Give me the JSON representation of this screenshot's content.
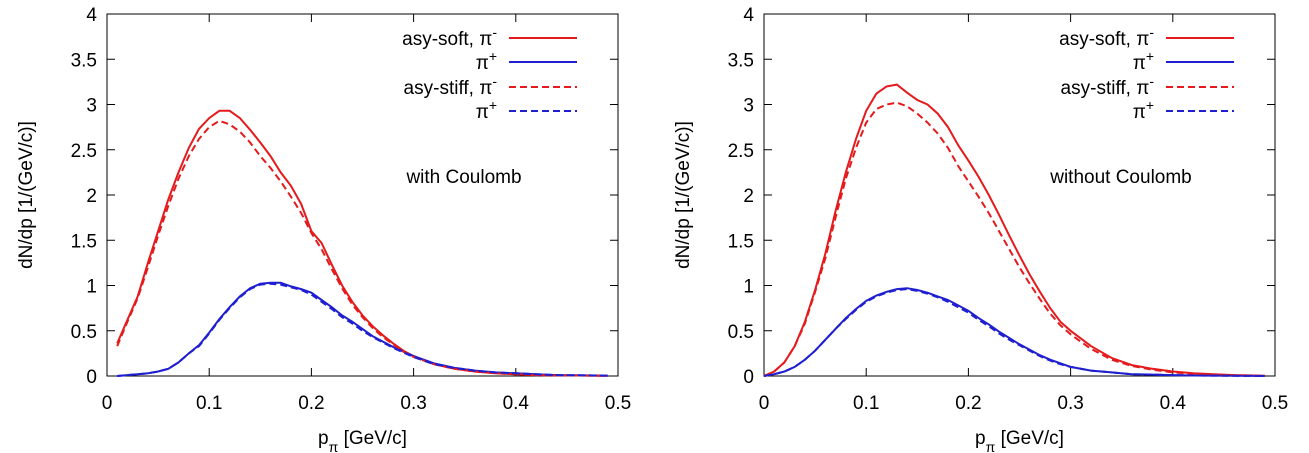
{
  "chart_data": [
    {
      "type": "line",
      "xlabel": "p",
      "xlabel_sub": "π",
      "xlabel_unit": " [GeV/c]",
      "ylabel": "dN/dp [1/(GeV/c)]",
      "xlim": [
        0,
        0.5
      ],
      "ylim": [
        0,
        4
      ],
      "xticks": [
        "0",
        "0.1",
        "0.2",
        "0.3",
        "0.4",
        "0.5"
      ],
      "yticks": [
        "0",
        "0.5",
        "1",
        "1.5",
        "2",
        "2.5",
        "3",
        "3.5",
        "4"
      ],
      "annotation": "with Coulomb",
      "grid": false,
      "legend_position": "top-right",
      "legend": [
        {
          "label": "asy-soft, π",
          "sup": "-",
          "color": "#e41a1c",
          "dash": "solid"
        },
        {
          "label": "π",
          "sup": "+",
          "color": "#1f1fd0",
          "dash": "solid"
        },
        {
          "label": "asy-stiff, π",
          "sup": "-",
          "color": "#e41a1c",
          "dash": "dashed"
        },
        {
          "label": "π",
          "sup": "+",
          "color": "#1f1fd0",
          "dash": "dashed"
        }
      ],
      "series": [
        {
          "color": "#e41a1c",
          "dash": "solid",
          "x": [
            0.01,
            0.02,
            0.03,
            0.04,
            0.05,
            0.06,
            0.07,
            0.08,
            0.09,
            0.1,
            0.11,
            0.12,
            0.13,
            0.14,
            0.15,
            0.16,
            0.17,
            0.18,
            0.19,
            0.2,
            0.21,
            0.22,
            0.23,
            0.24,
            0.25,
            0.26,
            0.27,
            0.28,
            0.29,
            0.3,
            0.32,
            0.34,
            0.36,
            0.38,
            0.4,
            0.42,
            0.44,
            0.46,
            0.48,
            0.49
          ],
          "y": [
            0.36,
            0.62,
            0.88,
            1.25,
            1.6,
            1.95,
            2.25,
            2.52,
            2.73,
            2.85,
            2.93,
            2.93,
            2.85,
            2.72,
            2.58,
            2.43,
            2.25,
            2.1,
            1.9,
            1.6,
            1.47,
            1.23,
            1.0,
            0.82,
            0.67,
            0.55,
            0.45,
            0.36,
            0.28,
            0.22,
            0.13,
            0.08,
            0.05,
            0.03,
            0.02,
            0.01,
            0.008,
            0.005,
            0.003,
            0.002
          ]
        },
        {
          "color": "#1f1fd0",
          "dash": "solid",
          "x": [
            0.01,
            0.02,
            0.03,
            0.04,
            0.05,
            0.06,
            0.07,
            0.08,
            0.09,
            0.1,
            0.11,
            0.12,
            0.13,
            0.14,
            0.15,
            0.16,
            0.17,
            0.18,
            0.19,
            0.2,
            0.21,
            0.22,
            0.23,
            0.24,
            0.25,
            0.26,
            0.27,
            0.28,
            0.29,
            0.3,
            0.32,
            0.34,
            0.36,
            0.38,
            0.4,
            0.42,
            0.44,
            0.46,
            0.48,
            0.49
          ],
          "y": [
            0.0,
            0.01,
            0.02,
            0.03,
            0.05,
            0.08,
            0.15,
            0.25,
            0.34,
            0.48,
            0.63,
            0.76,
            0.88,
            0.97,
            1.02,
            1.03,
            1.03,
            0.99,
            0.96,
            0.92,
            0.84,
            0.76,
            0.67,
            0.6,
            0.52,
            0.44,
            0.38,
            0.32,
            0.27,
            0.22,
            0.14,
            0.09,
            0.06,
            0.04,
            0.03,
            0.02,
            0.01,
            0.008,
            0.005,
            0.003
          ]
        },
        {
          "color": "#e41a1c",
          "dash": "dashed",
          "x": [
            0.01,
            0.02,
            0.03,
            0.04,
            0.05,
            0.06,
            0.07,
            0.08,
            0.09,
            0.1,
            0.11,
            0.12,
            0.13,
            0.14,
            0.15,
            0.16,
            0.17,
            0.18,
            0.19,
            0.2,
            0.21,
            0.22,
            0.23,
            0.24,
            0.25,
            0.26,
            0.27,
            0.28,
            0.29,
            0.3,
            0.32,
            0.34,
            0.36,
            0.38,
            0.4,
            0.42,
            0.44,
            0.46,
            0.48,
            0.49
          ],
          "y": [
            0.33,
            0.6,
            0.86,
            1.2,
            1.55,
            1.88,
            2.18,
            2.43,
            2.62,
            2.75,
            2.82,
            2.78,
            2.7,
            2.58,
            2.43,
            2.3,
            2.15,
            1.98,
            1.8,
            1.58,
            1.4,
            1.18,
            0.97,
            0.79,
            0.65,
            0.53,
            0.43,
            0.35,
            0.27,
            0.21,
            0.13,
            0.08,
            0.05,
            0.03,
            0.02,
            0.01,
            0.008,
            0.005,
            0.003,
            0.002
          ]
        },
        {
          "color": "#1f1fd0",
          "dash": "dashed",
          "x": [
            0.01,
            0.02,
            0.03,
            0.04,
            0.05,
            0.06,
            0.07,
            0.08,
            0.09,
            0.1,
            0.11,
            0.12,
            0.13,
            0.14,
            0.15,
            0.16,
            0.17,
            0.18,
            0.19,
            0.2,
            0.21,
            0.22,
            0.23,
            0.24,
            0.25,
            0.26,
            0.27,
            0.28,
            0.29,
            0.3,
            0.32,
            0.34,
            0.36,
            0.38,
            0.4,
            0.42,
            0.44,
            0.46,
            0.48,
            0.49
          ],
          "y": [
            0.0,
            0.01,
            0.02,
            0.03,
            0.05,
            0.08,
            0.15,
            0.25,
            0.33,
            0.47,
            0.62,
            0.75,
            0.87,
            0.96,
            1.01,
            1.02,
            1.01,
            0.98,
            0.95,
            0.9,
            0.82,
            0.74,
            0.65,
            0.58,
            0.5,
            0.43,
            0.37,
            0.31,
            0.26,
            0.21,
            0.13,
            0.09,
            0.06,
            0.04,
            0.03,
            0.02,
            0.01,
            0.008,
            0.005,
            0.003
          ]
        }
      ]
    },
    {
      "type": "line",
      "xlabel": "p",
      "xlabel_sub": "π",
      "xlabel_unit": " [GeV/c]",
      "ylabel": "dN/dp [1/(GeV/c)]",
      "xlim": [
        0,
        0.5
      ],
      "ylim": [
        0,
        4
      ],
      "xticks": [
        "0",
        "0.1",
        "0.2",
        "0.3",
        "0.4",
        "0.5"
      ],
      "yticks": [
        "0",
        "0.5",
        "1",
        "1.5",
        "2",
        "2.5",
        "3",
        "3.5",
        "4"
      ],
      "annotation": "without Coulomb",
      "grid": false,
      "legend_position": "top-right",
      "legend": [
        {
          "label": "asy-soft, π",
          "sup": "-",
          "color": "#e41a1c",
          "dash": "solid"
        },
        {
          "label": "π",
          "sup": "+",
          "color": "#1f1fd0",
          "dash": "solid"
        },
        {
          "label": "asy-stiff, π",
          "sup": "-",
          "color": "#e41a1c",
          "dash": "dashed"
        },
        {
          "label": "π",
          "sup": "+",
          "color": "#1f1fd0",
          "dash": "dashed"
        }
      ],
      "series": [
        {
          "color": "#e41a1c",
          "dash": "solid",
          "x": [
            0.0,
            0.01,
            0.02,
            0.03,
            0.04,
            0.05,
            0.06,
            0.07,
            0.08,
            0.09,
            0.1,
            0.11,
            0.12,
            0.13,
            0.14,
            0.15,
            0.16,
            0.17,
            0.18,
            0.19,
            0.2,
            0.21,
            0.22,
            0.23,
            0.24,
            0.25,
            0.26,
            0.27,
            0.28,
            0.29,
            0.3,
            0.32,
            0.34,
            0.36,
            0.38,
            0.4,
            0.42,
            0.44,
            0.46,
            0.48,
            0.49
          ],
          "y": [
            0.0,
            0.05,
            0.15,
            0.33,
            0.6,
            0.95,
            1.35,
            1.82,
            2.25,
            2.62,
            2.93,
            3.12,
            3.2,
            3.22,
            3.13,
            3.05,
            3.0,
            2.9,
            2.75,
            2.55,
            2.38,
            2.2,
            2.0,
            1.78,
            1.55,
            1.33,
            1.12,
            0.93,
            0.75,
            0.6,
            0.5,
            0.33,
            0.2,
            0.12,
            0.08,
            0.05,
            0.03,
            0.02,
            0.01,
            0.005,
            0.003
          ]
        },
        {
          "color": "#1f1fd0",
          "dash": "solid",
          "x": [
            0.0,
            0.01,
            0.02,
            0.03,
            0.04,
            0.05,
            0.06,
            0.07,
            0.08,
            0.09,
            0.1,
            0.11,
            0.12,
            0.13,
            0.14,
            0.15,
            0.16,
            0.17,
            0.18,
            0.19,
            0.2,
            0.21,
            0.22,
            0.23,
            0.24,
            0.25,
            0.26,
            0.27,
            0.28,
            0.29,
            0.3,
            0.32,
            0.34,
            0.36,
            0.38,
            0.4,
            0.42,
            0.44,
            0.46,
            0.48,
            0.49
          ],
          "y": [
            0.0,
            0.02,
            0.05,
            0.1,
            0.18,
            0.28,
            0.4,
            0.52,
            0.64,
            0.74,
            0.83,
            0.89,
            0.93,
            0.96,
            0.97,
            0.95,
            0.92,
            0.88,
            0.84,
            0.78,
            0.72,
            0.64,
            0.57,
            0.49,
            0.42,
            0.35,
            0.29,
            0.23,
            0.18,
            0.14,
            0.1,
            0.06,
            0.04,
            0.02,
            0.015,
            0.01,
            0.006,
            0.004,
            0.002,
            0.001,
            0.0
          ]
        },
        {
          "color": "#e41a1c",
          "dash": "dashed",
          "x": [
            0.0,
            0.01,
            0.02,
            0.03,
            0.04,
            0.05,
            0.06,
            0.07,
            0.08,
            0.09,
            0.1,
            0.11,
            0.12,
            0.13,
            0.14,
            0.15,
            0.16,
            0.17,
            0.18,
            0.19,
            0.2,
            0.21,
            0.22,
            0.23,
            0.24,
            0.25,
            0.26,
            0.27,
            0.28,
            0.29,
            0.3,
            0.32,
            0.34,
            0.36,
            0.38,
            0.4,
            0.42,
            0.44,
            0.46,
            0.48,
            0.49
          ],
          "y": [
            0.0,
            0.05,
            0.15,
            0.33,
            0.58,
            0.93,
            1.3,
            1.75,
            2.18,
            2.52,
            2.8,
            2.95,
            3.0,
            3.02,
            2.98,
            2.9,
            2.8,
            2.68,
            2.52,
            2.32,
            2.15,
            1.98,
            1.8,
            1.6,
            1.4,
            1.2,
            1.02,
            0.85,
            0.69,
            0.56,
            0.46,
            0.3,
            0.18,
            0.11,
            0.07,
            0.04,
            0.025,
            0.015,
            0.008,
            0.004,
            0.002
          ]
        },
        {
          "color": "#1f1fd0",
          "dash": "dashed",
          "x": [
            0.0,
            0.01,
            0.02,
            0.03,
            0.04,
            0.05,
            0.06,
            0.07,
            0.08,
            0.09,
            0.1,
            0.11,
            0.12,
            0.13,
            0.14,
            0.15,
            0.16,
            0.17,
            0.18,
            0.19,
            0.2,
            0.21,
            0.22,
            0.23,
            0.24,
            0.25,
            0.26,
            0.27,
            0.28,
            0.29,
            0.3,
            0.32,
            0.34,
            0.36,
            0.38,
            0.4,
            0.42,
            0.44,
            0.46,
            0.48,
            0.49
          ],
          "y": [
            0.0,
            0.02,
            0.05,
            0.1,
            0.18,
            0.28,
            0.4,
            0.52,
            0.63,
            0.73,
            0.82,
            0.88,
            0.92,
            0.95,
            0.96,
            0.94,
            0.91,
            0.87,
            0.82,
            0.76,
            0.7,
            0.62,
            0.55,
            0.47,
            0.4,
            0.34,
            0.28,
            0.22,
            0.17,
            0.13,
            0.1,
            0.06,
            0.04,
            0.02,
            0.015,
            0.01,
            0.006,
            0.004,
            0.002,
            0.001,
            0.0
          ]
        }
      ]
    }
  ]
}
